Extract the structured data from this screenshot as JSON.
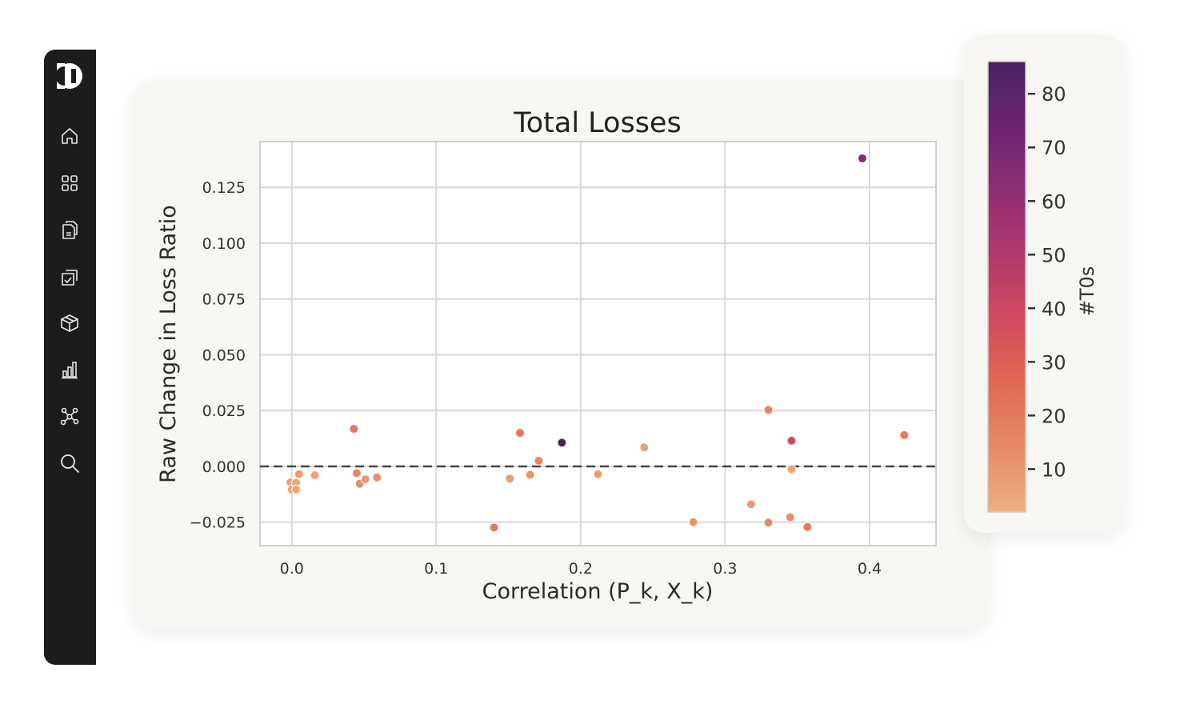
{
  "sidebar": {
    "logo": "logo-icon",
    "items": [
      {
        "icon": "home-icon",
        "label": "Home"
      },
      {
        "icon": "grid-icon",
        "label": "Dashboard"
      },
      {
        "icon": "documents-icon",
        "label": "Documents"
      },
      {
        "icon": "tasks-icon",
        "label": "Tasks"
      },
      {
        "icon": "package-icon",
        "label": "Packages"
      },
      {
        "icon": "bar-chart-icon",
        "label": "Analytics"
      },
      {
        "icon": "network-icon",
        "label": "Network"
      },
      {
        "icon": "search-icon",
        "label": "Search"
      }
    ]
  },
  "chart_data": {
    "type": "scatter",
    "title": "Total Losses",
    "xlabel": "Correlation (P_k, X_k)",
    "ylabel": "Raw Change in Loss Ratio",
    "xlim": [
      -0.022,
      0.446
    ],
    "ylim": [
      -0.0355,
      0.1455
    ],
    "xticks": [
      0.0,
      0.1,
      0.2,
      0.3,
      0.4
    ],
    "xtick_labels": [
      "0.0",
      "0.1",
      "0.2",
      "0.3",
      "0.4"
    ],
    "yticks": [
      -0.025,
      0.0,
      0.025,
      0.05,
      0.075,
      0.1,
      0.125
    ],
    "ytick_labels": [
      "−0.025",
      "0.000",
      "0.025",
      "0.050",
      "0.075",
      "0.100",
      "0.125"
    ],
    "grid": true,
    "reference_line": {
      "y": 0.0,
      "style": "dashed",
      "color": "#444444"
    },
    "colorbar": {
      "label": "#T0s",
      "range": [
        2,
        86
      ],
      "ticks": [
        10,
        20,
        30,
        40,
        50,
        60,
        70,
        80
      ],
      "colormap": "flare",
      "stops": [
        "#edb081",
        "#e68a65",
        "#e26952",
        "#d14a5e",
        "#b2386c",
        "#8e2d74",
        "#6b2570",
        "#4a2260"
      ]
    },
    "points": [
      {
        "x": -0.001,
        "y": -0.0072,
        "c": 5
      },
      {
        "x": 0.0,
        "y": -0.0103,
        "c": 6
      },
      {
        "x": 0.003,
        "y": -0.0073,
        "c": 4
      },
      {
        "x": 0.003,
        "y": -0.0103,
        "c": 5
      },
      {
        "x": 0.005,
        "y": -0.0035,
        "c": 7
      },
      {
        "x": 0.016,
        "y": -0.004,
        "c": 6
      },
      {
        "x": 0.043,
        "y": 0.0168,
        "c": 22
      },
      {
        "x": 0.045,
        "y": -0.003,
        "c": 14
      },
      {
        "x": 0.047,
        "y": -0.0078,
        "c": 13
      },
      {
        "x": 0.051,
        "y": -0.0058,
        "c": 9
      },
      {
        "x": 0.059,
        "y": -0.005,
        "c": 12
      },
      {
        "x": 0.14,
        "y": -0.0274,
        "c": 20
      },
      {
        "x": 0.151,
        "y": -0.0055,
        "c": 8
      },
      {
        "x": 0.158,
        "y": 0.015,
        "c": 22
      },
      {
        "x": 0.165,
        "y": -0.0038,
        "c": 11
      },
      {
        "x": 0.171,
        "y": 0.0025,
        "c": 16
      },
      {
        "x": 0.187,
        "y": 0.0106,
        "c": 85
      },
      {
        "x": 0.212,
        "y": -0.0035,
        "c": 8
      },
      {
        "x": 0.244,
        "y": 0.0085,
        "c": 7
      },
      {
        "x": 0.278,
        "y": -0.025,
        "c": 11
      },
      {
        "x": 0.318,
        "y": -0.017,
        "c": 9
      },
      {
        "x": 0.33,
        "y": 0.0253,
        "c": 16
      },
      {
        "x": 0.33,
        "y": -0.0252,
        "c": 15
      },
      {
        "x": 0.345,
        "y": -0.0228,
        "c": 12
      },
      {
        "x": 0.346,
        "y": -0.0013,
        "c": 6
      },
      {
        "x": 0.346,
        "y": 0.0115,
        "c": 38
      },
      {
        "x": 0.357,
        "y": -0.0272,
        "c": 19
      },
      {
        "x": 0.395,
        "y": 0.138,
        "c": 66
      },
      {
        "x": 0.424,
        "y": 0.014,
        "c": 19
      }
    ]
  }
}
